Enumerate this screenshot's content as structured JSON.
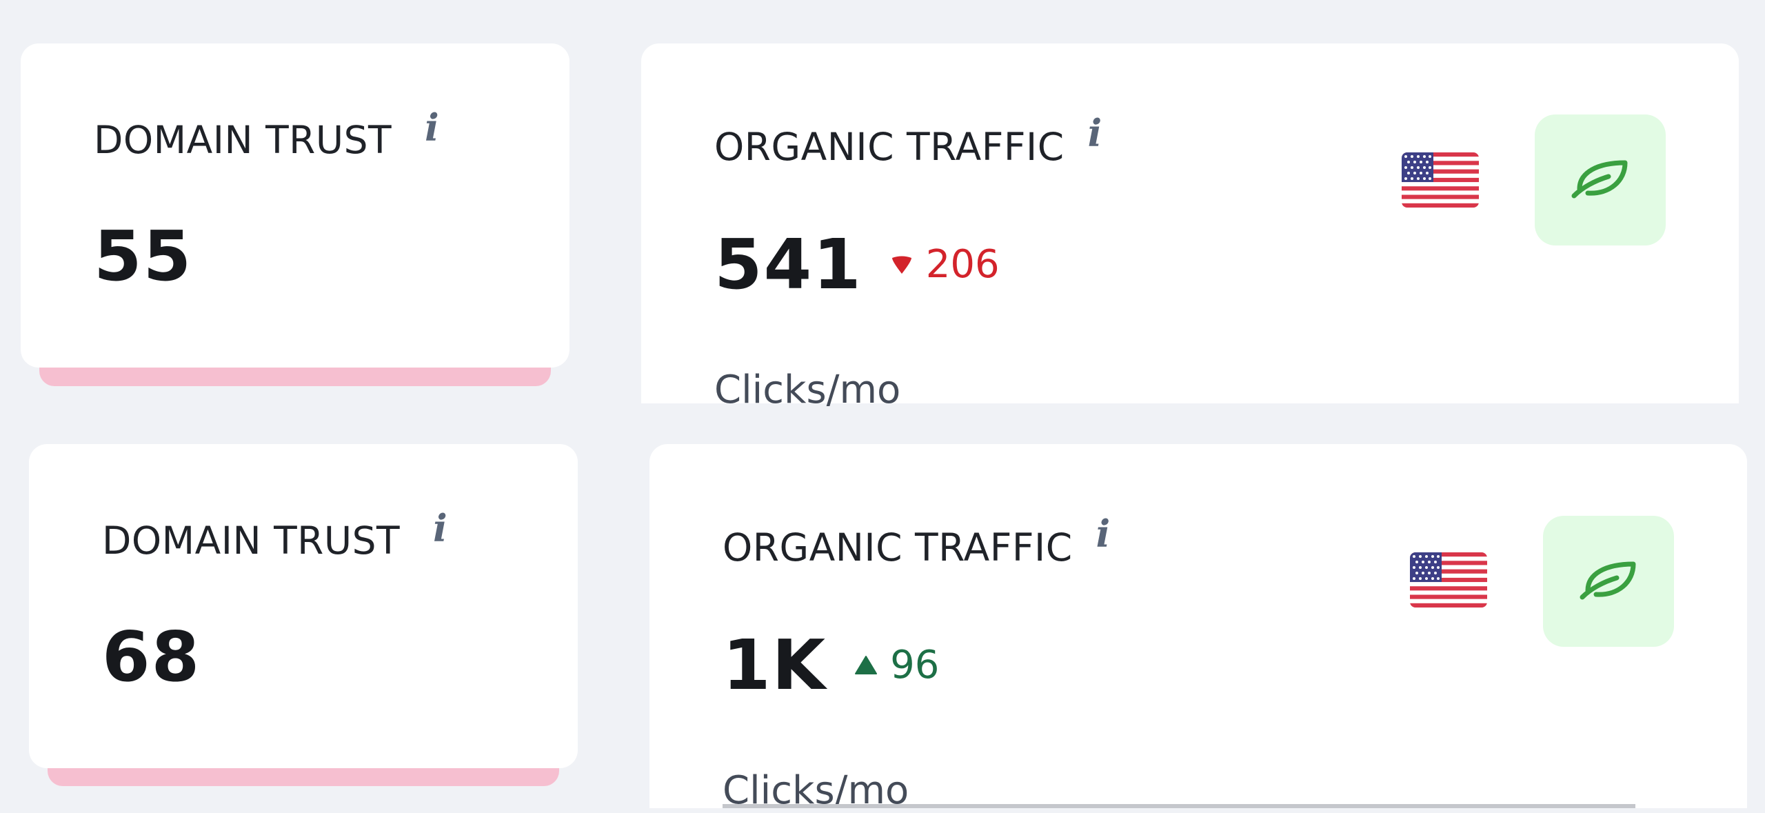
{
  "widgets": [
    {
      "domain_trust": {
        "title": "DOMAIN TRUST",
        "info": "i",
        "value": "55"
      },
      "organic_traffic": {
        "title": "ORGANIC TRAFFIC",
        "info": "i",
        "value": "541",
        "change": "206",
        "change_direction": "down",
        "unit": "Clicks/mo",
        "country_flag": "us-flag-icon",
        "action_icon": "leaf-icon"
      }
    },
    {
      "domain_trust": {
        "title": "DOMAIN TRUST",
        "info": "i",
        "value": "68"
      },
      "organic_traffic": {
        "title": "ORGANIC TRAFFIC",
        "info": "i",
        "value": "1K",
        "change": "96",
        "change_direction": "up",
        "unit": "Clicks/mo",
        "country_flag": "us-flag-icon",
        "action_icon": "leaf-icon"
      }
    }
  ],
  "colors": {
    "background": "#f0f2f6",
    "trend_down": "#d3232b",
    "trend_up": "#1d6f46",
    "trust_strip": "#f6bfd0",
    "leaf_button_bg": "#e2fbe4",
    "leaf_icon": "#3aa040"
  }
}
